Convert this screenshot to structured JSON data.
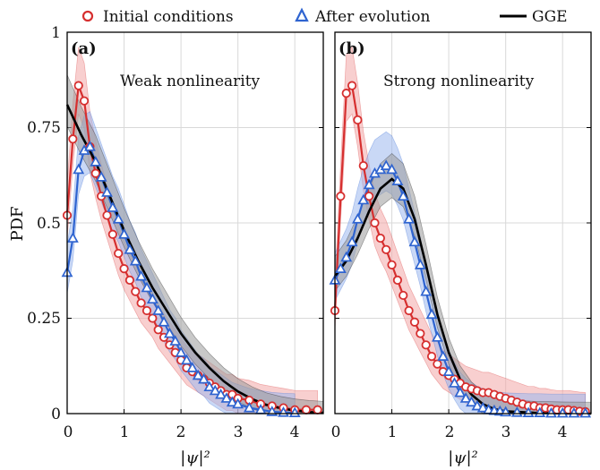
{
  "chart_data": {
    "type": "line",
    "legend": {
      "placement": "top",
      "entries": [
        {
          "label": "Initial conditions",
          "marker": "circle",
          "color": "#d62f2f"
        },
        {
          "label": "After evolution",
          "marker": "triangle",
          "color": "#2f64d0"
        },
        {
          "label": "GGE",
          "marker": "line",
          "color": "#000000"
        }
      ]
    },
    "ylabel": "PDF",
    "y_ticks": [
      "0",
      "0.25",
      "0.5",
      "0.75",
      "1"
    ],
    "ylim": [
      0,
      1
    ],
    "xlim": [
      0,
      4.5
    ],
    "grid": true,
    "colors": {
      "initial": "#d62f2f",
      "initial_band": "#f2a7a7",
      "evolved": "#2f64d0",
      "evolved_band": "#9db8ee",
      "gge": "#000000",
      "gge_band": "#9a9a9a"
    },
    "panels": [
      {
        "label": "(a)",
        "annotation": "Weak nonlinearity",
        "xlabel": "|ψ|²",
        "x_ticks": [
          "0",
          "1",
          "2",
          "3",
          "4"
        ],
        "series": [
          {
            "name": "Initial conditions",
            "x": [
              0,
              0.1,
              0.2,
              0.3,
              0.4,
              0.5,
              0.6,
              0.7,
              0.8,
              0.9,
              1.0,
              1.1,
              1.2,
              1.3,
              1.4,
              1.5,
              1.6,
              1.7,
              1.8,
              1.9,
              2.0,
              2.1,
              2.2,
              2.3,
              2.4,
              2.5,
              2.6,
              2.7,
              2.8,
              2.9,
              3.0,
              3.2,
              3.4,
              3.6,
              3.8,
              4.0,
              4.2,
              4.4
            ],
            "y": [
              0.52,
              0.72,
              0.86,
              0.82,
              0.7,
              0.63,
              0.57,
              0.52,
              0.47,
              0.42,
              0.38,
              0.35,
              0.32,
              0.29,
              0.27,
              0.25,
              0.22,
              0.2,
              0.18,
              0.16,
              0.14,
              0.12,
              0.11,
              0.1,
              0.09,
              0.08,
              0.07,
              0.06,
              0.05,
              0.05,
              0.04,
              0.035,
              0.025,
              0.02,
              0.015,
              0.01,
              0.01,
              0.01
            ]
          },
          {
            "name": "After evolution",
            "x": [
              0,
              0.1,
              0.2,
              0.3,
              0.4,
              0.5,
              0.6,
              0.7,
              0.8,
              0.9,
              1.0,
              1.1,
              1.2,
              1.3,
              1.4,
              1.5,
              1.6,
              1.7,
              1.8,
              1.9,
              2.0,
              2.1,
              2.2,
              2.3,
              2.4,
              2.5,
              2.6,
              2.7,
              2.8,
              2.9,
              3.0,
              3.2,
              3.4,
              3.6,
              3.8,
              4.0
            ],
            "y": [
              0.37,
              0.46,
              0.64,
              0.69,
              0.7,
              0.66,
              0.62,
              0.58,
              0.54,
              0.51,
              0.47,
              0.43,
              0.4,
              0.36,
              0.33,
              0.3,
              0.27,
              0.24,
              0.21,
              0.19,
              0.16,
              0.14,
              0.12,
              0.1,
              0.09,
              0.07,
              0.06,
              0.05,
              0.04,
              0.03,
              0.025,
              0.015,
              0.01,
              0.005,
              0.003,
              0.002
            ]
          },
          {
            "name": "GGE",
            "x": [
              0,
              0.25,
              0.5,
              0.75,
              1.0,
              1.25,
              1.5,
              1.75,
              2.0,
              2.25,
              2.5,
              2.75,
              3.0,
              3.25,
              3.5,
              3.75,
              4.0,
              4.25,
              4.5
            ],
            "y": [
              0.81,
              0.73,
              0.66,
              0.57,
              0.48,
              0.4,
              0.33,
              0.27,
              0.21,
              0.16,
              0.12,
              0.085,
              0.058,
              0.038,
              0.023,
              0.014,
              0.008,
              0.004,
              0.002
            ]
          }
        ]
      },
      {
        "label": "(b)",
        "annotation": "Strong nonlinearity",
        "xlabel": "|ψ|²",
        "x_ticks": [
          "0",
          "1",
          "2",
          "3",
          "4"
        ],
        "series": [
          {
            "name": "Initial conditions",
            "x": [
              0,
              0.1,
              0.2,
              0.3,
              0.4,
              0.5,
              0.6,
              0.7,
              0.8,
              0.9,
              1.0,
              1.1,
              1.2,
              1.3,
              1.4,
              1.5,
              1.6,
              1.7,
              1.8,
              1.9,
              2.0,
              2.1,
              2.2,
              2.3,
              2.4,
              2.5,
              2.6,
              2.7,
              2.8,
              2.9,
              3.0,
              3.1,
              3.2,
              3.3,
              3.4,
              3.5,
              3.6,
              3.7,
              3.8,
              3.9,
              4.0,
              4.1,
              4.2,
              4.3,
              4.4
            ],
            "y": [
              0.27,
              0.57,
              0.84,
              0.86,
              0.77,
              0.65,
              0.57,
              0.5,
              0.46,
              0.43,
              0.39,
              0.35,
              0.31,
              0.27,
              0.24,
              0.21,
              0.18,
              0.15,
              0.13,
              0.11,
              0.1,
              0.09,
              0.08,
              0.07,
              0.065,
              0.06,
              0.055,
              0.055,
              0.05,
              0.045,
              0.04,
              0.035,
              0.03,
              0.025,
              0.02,
              0.02,
              0.015,
              0.015,
              0.012,
              0.01,
              0.01,
              0.01,
              0.008,
              0.006,
              0.005
            ]
          },
          {
            "name": "After evolution",
            "x": [
              0,
              0.1,
              0.2,
              0.3,
              0.4,
              0.5,
              0.6,
              0.7,
              0.8,
              0.9,
              1.0,
              1.1,
              1.2,
              1.3,
              1.4,
              1.5,
              1.6,
              1.7,
              1.8,
              1.9,
              2.0,
              2.1,
              2.2,
              2.3,
              2.4,
              2.5,
              2.6,
              2.7,
              2.8,
              2.9,
              3.0,
              3.2,
              3.4,
              3.6,
              3.8,
              4.0,
              4.2,
              4.4
            ],
            "y": [
              0.35,
              0.38,
              0.41,
              0.45,
              0.51,
              0.56,
              0.6,
              0.63,
              0.64,
              0.65,
              0.64,
              0.61,
              0.57,
              0.51,
              0.45,
              0.39,
              0.32,
              0.26,
              0.2,
              0.15,
              0.11,
              0.08,
              0.055,
              0.04,
              0.03,
              0.02,
              0.015,
              0.01,
              0.008,
              0.006,
              0.004,
              0.003,
              0.002,
              0.002,
              0.001,
              0.001,
              0.001,
              0.001
            ]
          },
          {
            "name": "GGE",
            "x": [
              0,
              0.2,
              0.4,
              0.6,
              0.8,
              1.0,
              1.2,
              1.4,
              1.6,
              1.8,
              2.0,
              2.2,
              2.4,
              2.6,
              2.8,
              3.0,
              3.5,
              4.0,
              4.5
            ],
            "y": [
              0.36,
              0.4,
              0.46,
              0.53,
              0.59,
              0.615,
              0.59,
              0.51,
              0.39,
              0.26,
              0.16,
              0.09,
              0.05,
              0.025,
              0.012,
              0.006,
              0.002,
              0.0005,
              0.0001
            ]
          }
        ]
      }
    ]
  }
}
